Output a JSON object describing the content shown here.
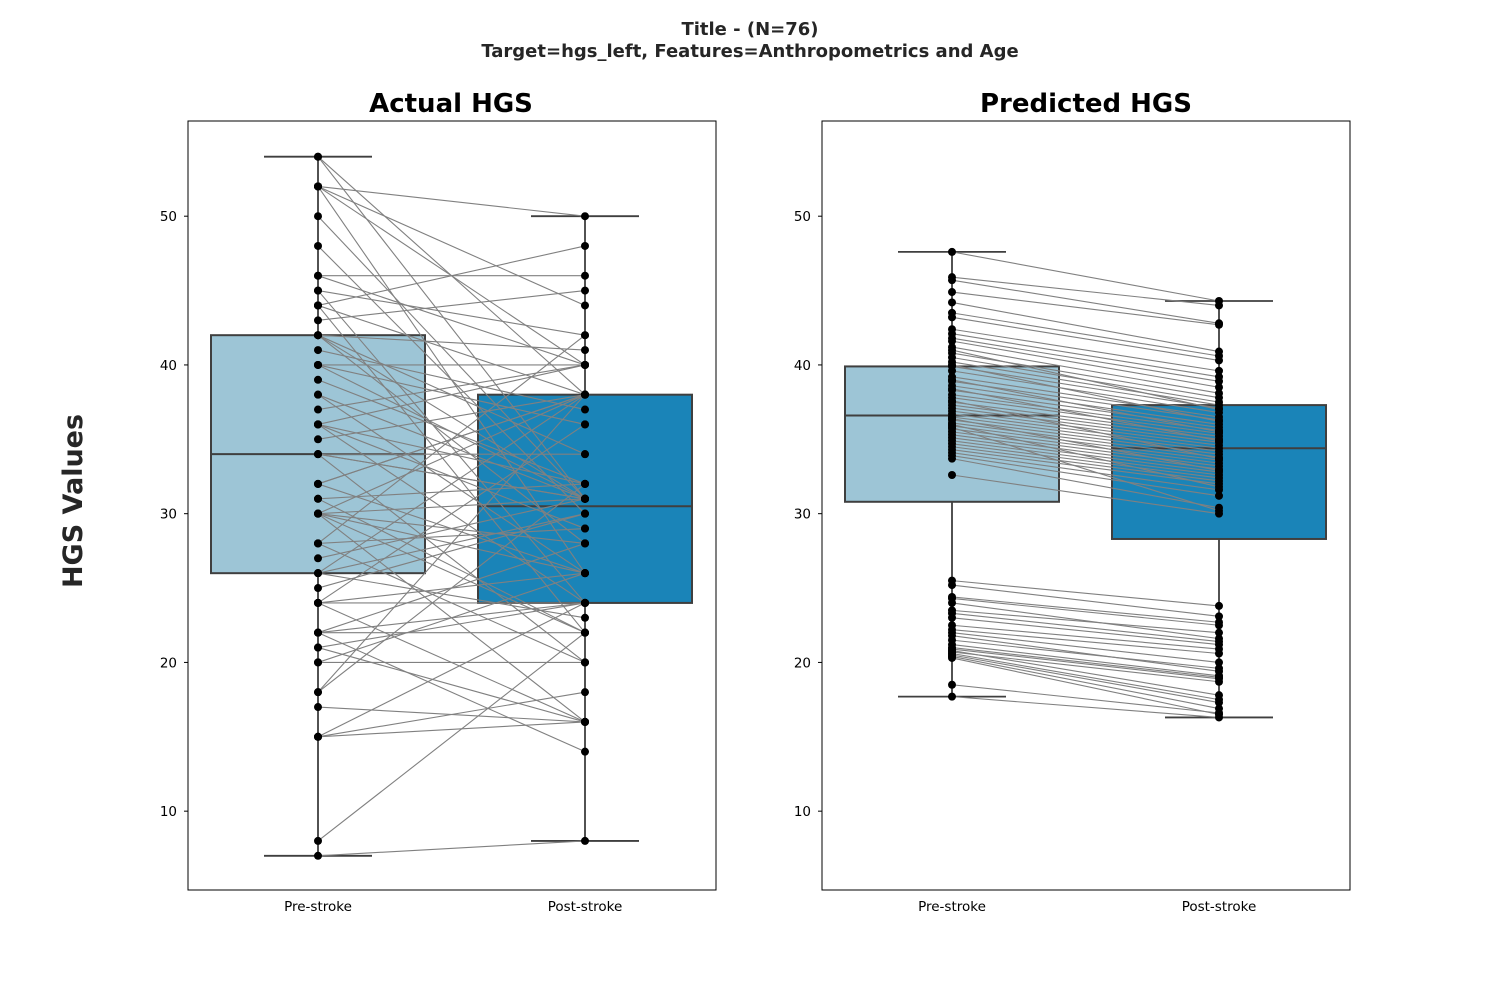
{
  "figure": {
    "suptitle_line1": "Title -  (N=76)",
    "suptitle_line2": "Target=hgs_left, Features=Anthropometrics and Age",
    "ylabel": "HGS Values"
  },
  "colors": {
    "pre_box": "#9dc5d6",
    "post_box": "#1a84b8",
    "box_edge": "#3f3f3f",
    "pair_line": "#808080",
    "point": "#000000"
  },
  "chart_data": [
    {
      "type": "box",
      "title": "Actual HGS",
      "categories": [
        "Pre-stroke",
        "Post-stroke"
      ],
      "ylim": [
        4.7,
        56.4
      ],
      "yticks": [
        10,
        20,
        30,
        40,
        50
      ],
      "boxes": [
        {
          "name": "Pre-stroke",
          "q1": 26,
          "median": 34,
          "q3": 42,
          "whisker_low": 7,
          "whisker_high": 54
        },
        {
          "name": "Post-stroke",
          "q1": 24,
          "median": 30.5,
          "q3": 38,
          "whisker_low": 8,
          "whisker_high": 50
        }
      ],
      "pairs": [
        [
          54,
          31
        ],
        [
          54,
          38
        ],
        [
          52,
          50
        ],
        [
          52,
          40
        ],
        [
          52,
          44
        ],
        [
          52,
          26
        ],
        [
          50,
          31
        ],
        [
          48,
          30
        ],
        [
          46,
          46
        ],
        [
          46,
          40
        ],
        [
          45,
          24
        ],
        [
          45,
          42
        ],
        [
          44,
          48
        ],
        [
          44,
          38
        ],
        [
          44,
          22
        ],
        [
          43,
          45
        ],
        [
          42,
          41
        ],
        [
          42,
          34
        ],
        [
          42,
          31
        ],
        [
          42,
          28
        ],
        [
          41,
          37
        ],
        [
          40,
          40
        ],
        [
          40,
          36
        ],
        [
          39,
          32
        ],
        [
          38,
          31
        ],
        [
          38,
          26
        ],
        [
          37,
          40
        ],
        [
          36,
          32
        ],
        [
          36,
          29
        ],
        [
          36,
          40
        ],
        [
          35,
          38
        ],
        [
          34,
          34
        ],
        [
          34,
          31
        ],
        [
          34,
          20
        ],
        [
          34,
          31
        ],
        [
          32,
          26
        ],
        [
          32,
          38
        ],
        [
          31,
          32
        ],
        [
          31,
          22
        ],
        [
          30,
          31
        ],
        [
          30,
          26
        ],
        [
          30,
          38
        ],
        [
          30,
          22
        ],
        [
          30,
          28
        ],
        [
          30,
          16
        ],
        [
          28,
          29
        ],
        [
          28,
          42
        ],
        [
          28,
          20
        ],
        [
          27,
          31
        ],
        [
          26,
          23
        ],
        [
          26,
          38
        ],
        [
          25,
          30
        ],
        [
          24,
          36
        ],
        [
          24,
          26
        ],
        [
          24,
          24
        ],
        [
          24,
          16
        ],
        [
          22,
          28
        ],
        [
          22,
          22
        ],
        [
          22,
          14
        ],
        [
          22,
          24
        ],
        [
          21,
          16
        ],
        [
          21,
          24
        ],
        [
          20,
          20
        ],
        [
          20,
          26
        ],
        [
          18,
          32
        ],
        [
          18,
          38
        ],
        [
          17,
          16
        ],
        [
          15,
          24
        ],
        [
          15,
          18
        ],
        [
          15,
          16
        ],
        [
          8,
          22
        ],
        [
          7,
          8
        ],
        [
          26,
          30
        ],
        [
          36,
          24
        ],
        [
          40,
          31
        ],
        [
          32,
          38
        ]
      ]
    },
    {
      "type": "box",
      "title": "Predicted HGS",
      "categories": [
        "Pre-stroke",
        "Post-stroke"
      ],
      "ylim": [
        4.7,
        56.4
      ],
      "yticks": [
        10,
        20,
        30,
        40,
        50
      ],
      "boxes": [
        {
          "name": "Pre-stroke",
          "q1": 30.8,
          "median": 36.6,
          "q3": 39.9,
          "whisker_low": 17.7,
          "whisker_high": 47.6
        },
        {
          "name": "Post-stroke",
          "q1": 28.3,
          "median": 34.4,
          "q3": 37.3,
          "whisker_low": 16.3,
          "whisker_high": 44.3
        }
      ],
      "pairs": [
        [
          47.6,
          44.3
        ],
        [
          45.9,
          44.0
        ],
        [
          45.7,
          42.8
        ],
        [
          44.9,
          42.7
        ],
        [
          44.2,
          40.9
        ],
        [
          43.5,
          40.6
        ],
        [
          43.2,
          40.3
        ],
        [
          42.4,
          39.6
        ],
        [
          42.1,
          39.2
        ],
        [
          41.8,
          38.9
        ],
        [
          41.6,
          38.5
        ],
        [
          41.2,
          38.1
        ],
        [
          40.8,
          37.8
        ],
        [
          40.5,
          37.5
        ],
        [
          40.2,
          37.3
        ],
        [
          39.9,
          37.1
        ],
        [
          39.6,
          36.8
        ],
        [
          39.2,
          36.5
        ],
        [
          38.9,
          36.3
        ],
        [
          38.6,
          36.0
        ],
        [
          38.3,
          35.8
        ],
        [
          38.0,
          35.6
        ],
        [
          37.8,
          35.4
        ],
        [
          37.5,
          35.2
        ],
        [
          37.3,
          35.0
        ],
        [
          37.1,
          34.8
        ],
        [
          36.9,
          34.6
        ],
        [
          36.7,
          34.4
        ],
        [
          36.5,
          34.2
        ],
        [
          36.3,
          34.0
        ],
        [
          36.1,
          33.8
        ],
        [
          35.9,
          33.6
        ],
        [
          35.7,
          33.4
        ],
        [
          35.5,
          33.2
        ],
        [
          35.3,
          33.0
        ],
        [
          35.1,
          32.8
        ],
        [
          34.9,
          32.6
        ],
        [
          34.7,
          32.4
        ],
        [
          34.5,
          32.2
        ],
        [
          34.3,
          32.0
        ],
        [
          34.1,
          31.6
        ],
        [
          33.9,
          31.2
        ],
        [
          33.7,
          30.4
        ],
        [
          32.6,
          30.0
        ],
        [
          36.0,
          31.8
        ],
        [
          37.6,
          33.7
        ],
        [
          38.4,
          34.9
        ],
        [
          40.0,
          36.2
        ],
        [
          35.8,
          30.2
        ],
        [
          36.4,
          32.9
        ],
        [
          39.0,
          35.5
        ],
        [
          41.0,
          37.0
        ],
        [
          25.5,
          23.8
        ],
        [
          25.2,
          23.1
        ],
        [
          24.4,
          22.7
        ],
        [
          24.3,
          22.5
        ],
        [
          23.3,
          21.4
        ],
        [
          23.0,
          21.2
        ],
        [
          22.5,
          20.9
        ],
        [
          22.2,
          20.6
        ],
        [
          21.5,
          19.6
        ],
        [
          21.2,
          19.1
        ],
        [
          20.9,
          18.9
        ],
        [
          20.7,
          18.7
        ],
        [
          20.6,
          17.5
        ],
        [
          20.5,
          17.3
        ],
        [
          20.4,
          16.9
        ],
        [
          18.5,
          16.6
        ],
        [
          17.7,
          16.3
        ],
        [
          21.0,
          19.0
        ],
        [
          22.0,
          20.0
        ],
        [
          23.5,
          22.0
        ],
        [
          20.8,
          17.8
        ],
        [
          24.0,
          21.6
        ],
        [
          20.3,
          16.5
        ],
        [
          21.8,
          19.4
        ]
      ]
    }
  ]
}
